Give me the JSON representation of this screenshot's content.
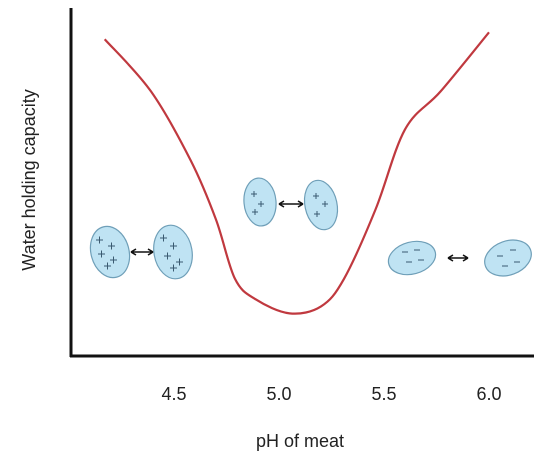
{
  "chart_data": {
    "type": "line",
    "x_label": "pH of meat",
    "y_label": "Water holding capacity",
    "series": [
      {
        "name": "Water holding capacity",
        "color": "#c0393f",
        "x": [
          4.17,
          4.39,
          4.58,
          4.7,
          4.79,
          4.89,
          5.05,
          5.2,
          5.31,
          5.46,
          5.6,
          5.77,
          6.0
        ],
        "values": [
          91,
          76,
          56,
          39,
          22,
          16,
          12,
          14,
          22,
          42,
          65,
          76,
          93
        ]
      }
    ],
    "xlim": [
      4.0,
      6.2
    ],
    "xticks": [
      4.5,
      {
        "value": 5.0,
        "label": "5.0"
      },
      5.5,
      {
        "value": 6.0,
        "label": "6.0"
      }
    ],
    "ylim": [
      0,
      100
    ]
  }
}
